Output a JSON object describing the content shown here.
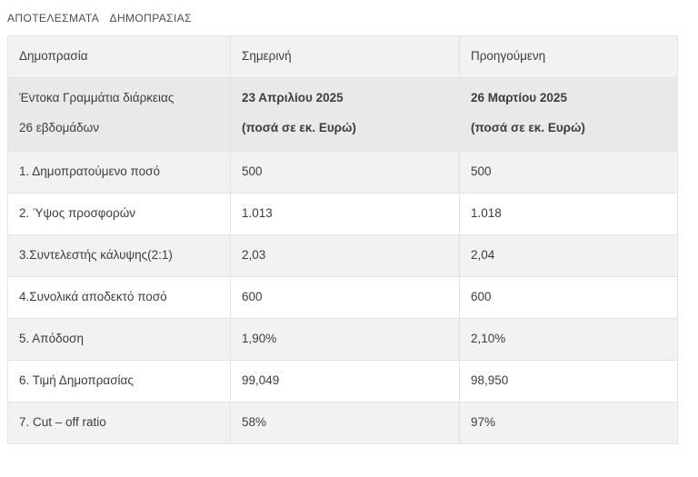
{
  "page": {
    "title": "ΑΠΟΤΕΛΕΣΜΑΤΑ  ΔΗΜΟΠΡΑΣΙΑΣ"
  },
  "table": {
    "columns": [
      "Δημοπρασία",
      "Σημερινή",
      "Προηγούμενη"
    ],
    "subheader": {
      "label_line1": "Έντοκα Γραμμάτια διάρκειας",
      "label_line2": "26 εβδομάδων",
      "current_line1": "23 Απριλίου 2025",
      "current_line2": "(ποσά σε εκ. Ευρώ)",
      "previous_line1": "26 Μαρτίου 2025",
      "previous_line2": "(ποσά σε εκ. Ευρώ)"
    },
    "rows": [
      {
        "label": "1. Δημοπρατούμενο ποσό",
        "current": "500",
        "previous": "500"
      },
      {
        "label": "2. Ύψος προσφορών",
        "current": "1.013",
        "previous": "1.018"
      },
      {
        "label": "3.Συντελεστής κάλυψης(2:1)",
        "current": "2,03",
        "previous": "2,04"
      },
      {
        "label": "4.Συνολικά αποδεκτό ποσό",
        "current": "600",
        "previous": "600"
      },
      {
        "label": "5. Απόδοση",
        "current": "1,90%",
        "previous": "2,10%"
      },
      {
        "label": "6. Τιμή Δημοπρασίας",
        "current": "99,049",
        "previous": "98,950"
      },
      {
        "label": "7. Cut – off ratio",
        "current": "58%",
        "previous": "97%"
      }
    ],
    "colors": {
      "header_bg": "#f1f2f2",
      "subheader_bg": "#e9e9e9",
      "row_odd_bg": "#f1f2f2",
      "row_even_bg": "#ffffff",
      "border": "#e3e3e3",
      "text": "#3d3d3d",
      "title_text": "#4d4d4d",
      "page_bg": "#ffffff"
    }
  }
}
